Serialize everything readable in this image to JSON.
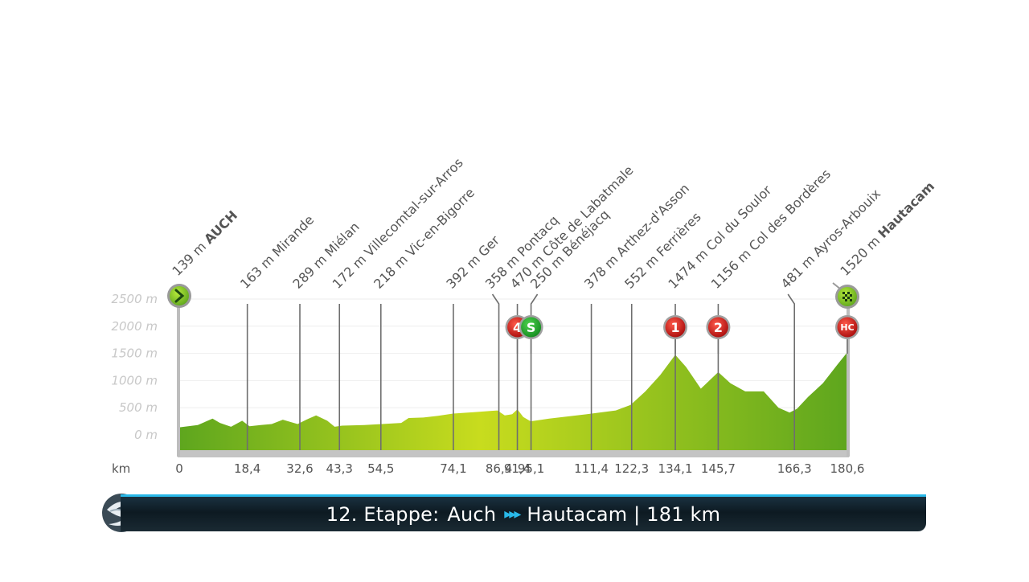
{
  "chart_data": {
    "type": "area",
    "title": "",
    "xlabel": "km",
    "ylabel": "",
    "ylim": [
      0,
      2500
    ],
    "xlim": [
      0,
      180.6
    ],
    "y_ticks": [
      "2500 m",
      "2000 m",
      "1500 m",
      "1000 m",
      "500 m",
      "0 m"
    ],
    "y_tick_values": [
      2500,
      2000,
      1500,
      1000,
      500,
      0
    ],
    "x_ticks": [
      "0",
      "18,4",
      "32,6",
      "43,3",
      "54,5",
      "74,1",
      "86,4",
      "91,4",
      "95,1",
      "111,4",
      "122,3",
      "134,1",
      "145,7",
      "166,3",
      "180,6"
    ],
    "x_tick_values": [
      0,
      18.4,
      32.6,
      43.3,
      54.5,
      74.1,
      86.4,
      91.4,
      95.1,
      111.4,
      122.3,
      134.1,
      145.7,
      166.3,
      180.6
    ],
    "profile": {
      "x": [
        0,
        5,
        9,
        11,
        14,
        17,
        19,
        22,
        25,
        28,
        32,
        35,
        37,
        40,
        42,
        44,
        50,
        60,
        62,
        66,
        70,
        74,
        80,
        84,
        86,
        88,
        90,
        91.4,
        93,
        95,
        100,
        110,
        118,
        122,
        126,
        130,
        134.1,
        137,
        141,
        145.7,
        149,
        153,
        158,
        162,
        165,
        167,
        170,
        174,
        178,
        180.6
      ],
      "y": [
        139,
        180,
        300,
        220,
        150,
        260,
        160,
        180,
        200,
        280,
        200,
        300,
        360,
        260,
        150,
        170,
        180,
        220,
        310,
        320,
        350,
        392,
        420,
        440,
        450,
        358,
        380,
        470,
        330,
        250,
        300,
        378,
        450,
        552,
        800,
        1100,
        1474,
        1250,
        850,
        1156,
        950,
        800,
        800,
        500,
        410,
        481,
        700,
        950,
        1300,
        1520
      ]
    },
    "waypoints": [
      {
        "km": 0,
        "alt": "139 m",
        "name": "AUCH",
        "bold": true
      },
      {
        "km": 18.4,
        "alt": "163 m",
        "name": "Mirande",
        "bold": false
      },
      {
        "km": 32.6,
        "alt": "289 m",
        "name": "Miélan",
        "bold": false
      },
      {
        "km": 43.3,
        "alt": "172 m",
        "name": "Villecomtal-sur-Arros",
        "bold": false
      },
      {
        "km": 54.5,
        "alt": "218 m",
        "name": "Vic-en-Bigorre",
        "bold": false
      },
      {
        "km": 74.1,
        "alt": "392 m",
        "name": "Ger",
        "bold": false
      },
      {
        "km": 86.4,
        "alt": "358 m",
        "name": "Pontacq",
        "bold": false
      },
      {
        "km": 91.4,
        "alt": "470 m",
        "name": "Côte de Labatmale",
        "bold": false
      },
      {
        "km": 95.1,
        "alt": "250 m",
        "name": "Bénéjacq",
        "bold": false
      },
      {
        "km": 111.4,
        "alt": "378 m",
        "name": "Arthez-d'Asson",
        "bold": false
      },
      {
        "km": 122.3,
        "alt": "552 m",
        "name": "Ferrières",
        "bold": false
      },
      {
        "km": 134.1,
        "alt": "1474 m",
        "name": "Col du Soulor",
        "bold": false
      },
      {
        "km": 145.7,
        "alt": "1156 m",
        "name": "Col des Bordères",
        "bold": false
      },
      {
        "km": 166.3,
        "alt": "481 m",
        "name": "Ayros-Arbouix",
        "bold": false
      },
      {
        "km": 180.6,
        "alt": "1520 m",
        "name": "Hautacam",
        "bold": true
      }
    ],
    "badges": [
      {
        "km": 91.4,
        "label": "4",
        "color": "#c01515"
      },
      {
        "km": 95.1,
        "label": "S",
        "color": "#1a9a2a"
      },
      {
        "km": 134.1,
        "label": "1",
        "color": "#c01515"
      },
      {
        "km": 145.7,
        "label": "2",
        "color": "#c01515"
      },
      {
        "km": 180.6,
        "label": "HC",
        "color": "#c01515"
      }
    ],
    "start_icon": "start-arrow-icon",
    "finish_icon": "checkered-flag-icon",
    "colors": {
      "fill_light": "#c8dc1e",
      "fill_dark": "#5ea61e",
      "line": "#6e6e6e",
      "base": "#bdbdbd"
    }
  },
  "banner": {
    "stage": "12. Etappe:",
    "from": "Auch",
    "arrows": "▸▸▸",
    "to": "Hautacam | 181 km",
    "accent": "#29b8e8",
    "logo_icon": "broadcaster-logo-icon"
  }
}
